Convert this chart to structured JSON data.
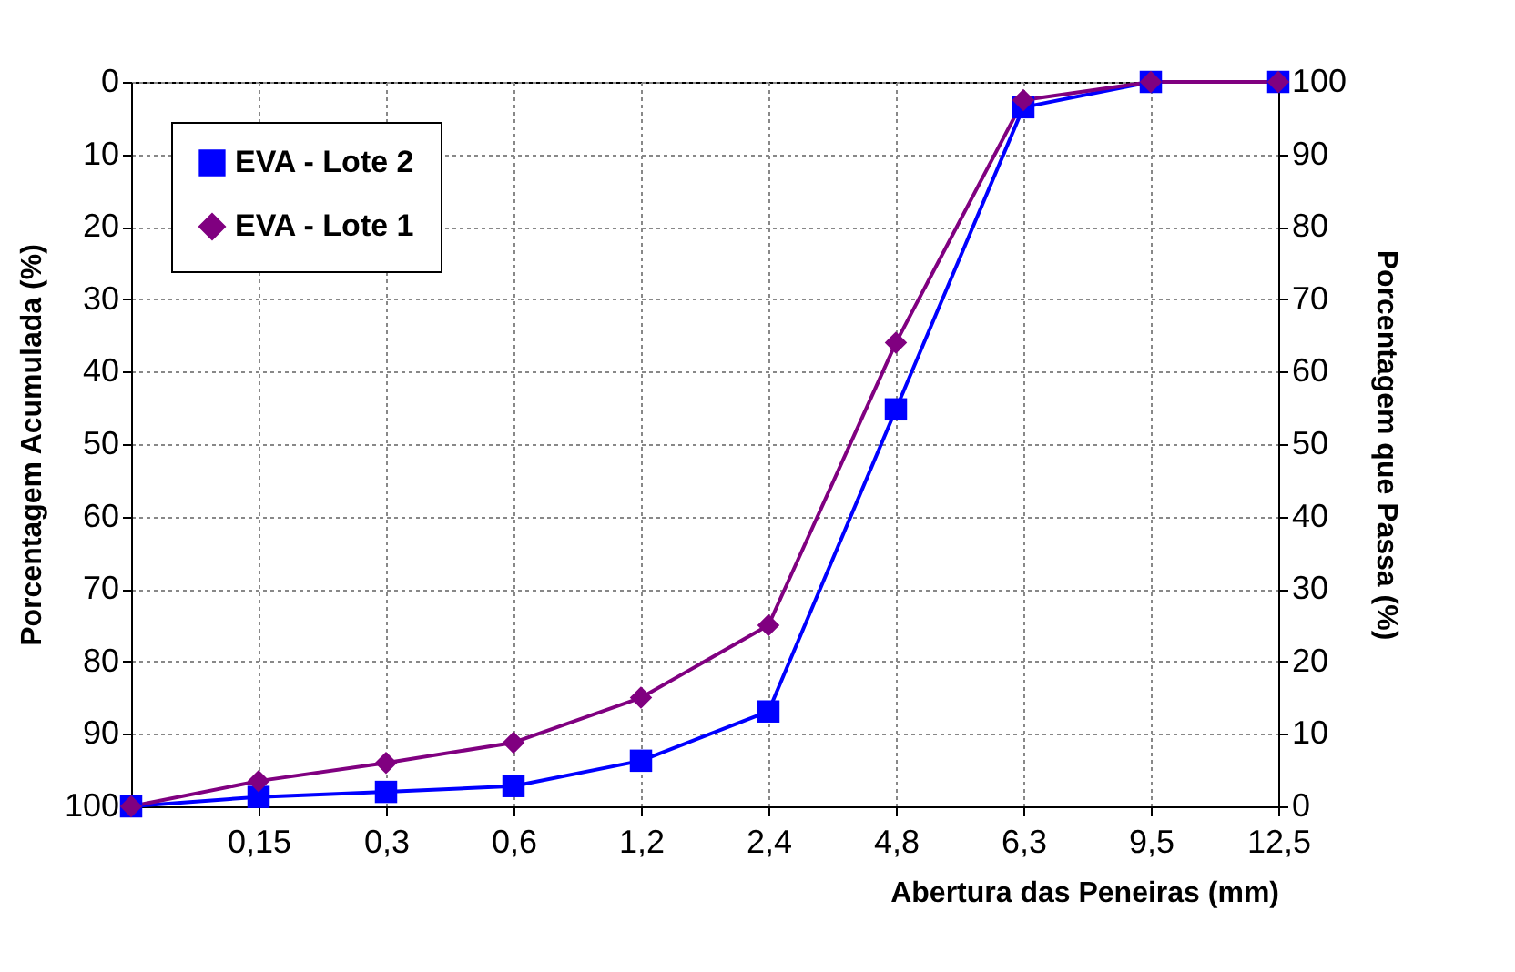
{
  "chart_data": {
    "type": "line",
    "xlabel": "Abertura das Peneiras (mm)",
    "ylabel": "Porcentagem Acumulada (%)",
    "y2label": "Porcentagem que Passa (%)",
    "categories": [
      null,
      "0,15",
      "0,3",
      "0,6",
      "1,2",
      "2,4",
      "4,8",
      "6,3",
      "9,5",
      "12,5"
    ],
    "ylim": [
      100,
      0
    ],
    "yticks": [
      0,
      10,
      20,
      30,
      40,
      50,
      60,
      70,
      80,
      90,
      100
    ],
    "y2lim": [
      0,
      100
    ],
    "y2ticks": [
      0,
      10,
      20,
      30,
      40,
      50,
      60,
      70,
      80,
      90,
      100
    ],
    "grid": true,
    "legend": "top left",
    "line_style": "solid",
    "series": [
      {
        "name": "EVA - Lote 2",
        "color": "#0000ff",
        "axis": "y2",
        "marker": "square",
        "values": [
          0,
          1.3,
          2,
          2.8,
          6.3,
          13.1,
          54.8,
          96.5,
          100,
          100
        ]
      },
      {
        "name": "EVA - Lote 1",
        "color": "#800080",
        "axis": "y2",
        "marker": "diamond",
        "values": [
          0,
          3.5,
          6,
          8.8,
          15,
          25,
          64,
          97.5,
          100,
          100
        ]
      }
    ]
  }
}
